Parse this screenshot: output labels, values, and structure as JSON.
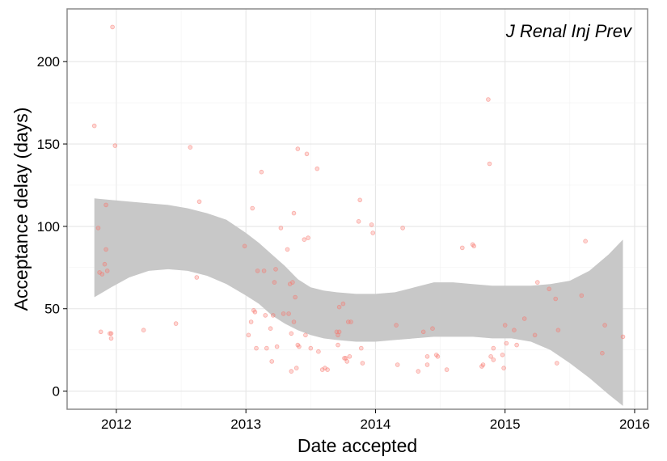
{
  "chart_data": {
    "type": "scatter",
    "title": "",
    "annotation": "J Renal Inj Prev",
    "xlabel": "Date accepted",
    "ylabel": "Acceptance delay (days)",
    "xlim": [
      2011.62,
      2016.1
    ],
    "ylim": [
      -11,
      232
    ],
    "x_ticks": [
      2012,
      2013,
      2014,
      2015,
      2016
    ],
    "x_tick_labels": [
      "2012",
      "2013",
      "2014",
      "2015",
      "2016"
    ],
    "y_ticks": [
      0,
      50,
      100,
      150,
      200
    ],
    "y_tick_labels": [
      "0",
      "50",
      "100",
      "150",
      "200"
    ],
    "grid": true,
    "point_color": "#f8766d",
    "band_color": "#c8c8c8",
    "points": [
      {
        "x": 2011.83,
        "y": 161
      },
      {
        "x": 2011.86,
        "y": 99
      },
      {
        "x": 2011.87,
        "y": 72
      },
      {
        "x": 2011.88,
        "y": 36
      },
      {
        "x": 2011.89,
        "y": 71
      },
      {
        "x": 2011.91,
        "y": 77
      },
      {
        "x": 2011.92,
        "y": 113
      },
      {
        "x": 2011.92,
        "y": 86
      },
      {
        "x": 2011.93,
        "y": 73
      },
      {
        "x": 2011.95,
        "y": 35
      },
      {
        "x": 2011.96,
        "y": 32
      },
      {
        "x": 2011.96,
        "y": 35
      },
      {
        "x": 2011.97,
        "y": 221
      },
      {
        "x": 2011.99,
        "y": 149
      },
      {
        "x": 2012.21,
        "y": 37
      },
      {
        "x": 2012.46,
        "y": 41
      },
      {
        "x": 2012.57,
        "y": 148
      },
      {
        "x": 2012.62,
        "y": 69
      },
      {
        "x": 2012.64,
        "y": 115
      },
      {
        "x": 2012.99,
        "y": 88
      },
      {
        "x": 2013.02,
        "y": 34
      },
      {
        "x": 2013.04,
        "y": 42
      },
      {
        "x": 2013.05,
        "y": 111
      },
      {
        "x": 2013.06,
        "y": 49
      },
      {
        "x": 2013.07,
        "y": 48
      },
      {
        "x": 2013.08,
        "y": 26
      },
      {
        "x": 2013.09,
        "y": 73
      },
      {
        "x": 2013.12,
        "y": 133
      },
      {
        "x": 2013.14,
        "y": 73
      },
      {
        "x": 2013.15,
        "y": 46
      },
      {
        "x": 2013.16,
        "y": 26
      },
      {
        "x": 2013.19,
        "y": 38
      },
      {
        "x": 2013.2,
        "y": 18
      },
      {
        "x": 2013.21,
        "y": 46
      },
      {
        "x": 2013.22,
        "y": 66
      },
      {
        "x": 2013.23,
        "y": 74
      },
      {
        "x": 2013.24,
        "y": 27
      },
      {
        "x": 2013.27,
        "y": 99
      },
      {
        "x": 2013.29,
        "y": 47
      },
      {
        "x": 2013.32,
        "y": 86
      },
      {
        "x": 2013.33,
        "y": 47
      },
      {
        "x": 2013.34,
        "y": 65
      },
      {
        "x": 2013.35,
        "y": 12
      },
      {
        "x": 2013.35,
        "y": 35
      },
      {
        "x": 2013.36,
        "y": 66
      },
      {
        "x": 2013.37,
        "y": 108
      },
      {
        "x": 2013.37,
        "y": 42
      },
      {
        "x": 2013.38,
        "y": 57
      },
      {
        "x": 2013.39,
        "y": 14
      },
      {
        "x": 2013.4,
        "y": 147
      },
      {
        "x": 2013.4,
        "y": 28
      },
      {
        "x": 2013.41,
        "y": 27
      },
      {
        "x": 2013.45,
        "y": 92
      },
      {
        "x": 2013.46,
        "y": 34
      },
      {
        "x": 2013.47,
        "y": 144
      },
      {
        "x": 2013.48,
        "y": 93
      },
      {
        "x": 2013.5,
        "y": 26
      },
      {
        "x": 2013.55,
        "y": 135
      },
      {
        "x": 2013.56,
        "y": 24
      },
      {
        "x": 2013.59,
        "y": 13
      },
      {
        "x": 2013.61,
        "y": 14
      },
      {
        "x": 2013.63,
        "y": 13
      },
      {
        "x": 2013.7,
        "y": 36
      },
      {
        "x": 2013.71,
        "y": 34
      },
      {
        "x": 2013.71,
        "y": 28
      },
      {
        "x": 2013.72,
        "y": 36
      },
      {
        "x": 2013.72,
        "y": 51
      },
      {
        "x": 2013.75,
        "y": 53
      },
      {
        "x": 2013.76,
        "y": 20
      },
      {
        "x": 2013.77,
        "y": 20
      },
      {
        "x": 2013.78,
        "y": 18
      },
      {
        "x": 2013.79,
        "y": 42
      },
      {
        "x": 2013.8,
        "y": 21
      },
      {
        "x": 2013.81,
        "y": 42
      },
      {
        "x": 2013.87,
        "y": 103
      },
      {
        "x": 2013.88,
        "y": 116
      },
      {
        "x": 2013.89,
        "y": 26
      },
      {
        "x": 2013.9,
        "y": 17
      },
      {
        "x": 2013.97,
        "y": 101
      },
      {
        "x": 2013.98,
        "y": 96
      },
      {
        "x": 2014.16,
        "y": 40
      },
      {
        "x": 2014.17,
        "y": 16
      },
      {
        "x": 2014.21,
        "y": 99
      },
      {
        "x": 2014.33,
        "y": 12
      },
      {
        "x": 2014.37,
        "y": 36
      },
      {
        "x": 2014.4,
        "y": 21
      },
      {
        "x": 2014.4,
        "y": 16
      },
      {
        "x": 2014.44,
        "y": 38
      },
      {
        "x": 2014.47,
        "y": 22
      },
      {
        "x": 2014.48,
        "y": 21
      },
      {
        "x": 2014.55,
        "y": 13
      },
      {
        "x": 2014.67,
        "y": 87
      },
      {
        "x": 2014.75,
        "y": 89
      },
      {
        "x": 2014.76,
        "y": 88
      },
      {
        "x": 2014.82,
        "y": 15
      },
      {
        "x": 2014.83,
        "y": 16
      },
      {
        "x": 2014.87,
        "y": 177
      },
      {
        "x": 2014.88,
        "y": 138
      },
      {
        "x": 2014.89,
        "y": 21
      },
      {
        "x": 2014.91,
        "y": 26
      },
      {
        "x": 2014.91,
        "y": 19
      },
      {
        "x": 2014.98,
        "y": 22
      },
      {
        "x": 2014.99,
        "y": 14
      },
      {
        "x": 2015.0,
        "y": 40
      },
      {
        "x": 2015.01,
        "y": 29
      },
      {
        "x": 2015.07,
        "y": 37
      },
      {
        "x": 2015.09,
        "y": 28
      },
      {
        "x": 2015.15,
        "y": 44
      },
      {
        "x": 2015.23,
        "y": 34
      },
      {
        "x": 2015.25,
        "y": 66
      },
      {
        "x": 2015.34,
        "y": 62
      },
      {
        "x": 2015.39,
        "y": 56
      },
      {
        "x": 2015.4,
        "y": 17
      },
      {
        "x": 2015.41,
        "y": 37
      },
      {
        "x": 2015.59,
        "y": 58
      },
      {
        "x": 2015.62,
        "y": 91
      },
      {
        "x": 2015.75,
        "y": 23
      },
      {
        "x": 2015.77,
        "y": 40
      },
      {
        "x": 2015.91,
        "y": 33
      }
    ],
    "smooth_band": [
      {
        "x": 2011.83,
        "lower": 57,
        "upper": 117
      },
      {
        "x": 2011.96,
        "lower": 63,
        "upper": 116
      },
      {
        "x": 2012.1,
        "lower": 69,
        "upper": 115
      },
      {
        "x": 2012.25,
        "lower": 73,
        "upper": 114
      },
      {
        "x": 2012.4,
        "lower": 74,
        "upper": 113
      },
      {
        "x": 2012.55,
        "lower": 73,
        "upper": 111
      },
      {
        "x": 2012.7,
        "lower": 70,
        "upper": 108
      },
      {
        "x": 2012.85,
        "lower": 65,
        "upper": 104
      },
      {
        "x": 2013.0,
        "lower": 58,
        "upper": 96
      },
      {
        "x": 2013.1,
        "lower": 53,
        "upper": 90
      },
      {
        "x": 2013.2,
        "lower": 46,
        "upper": 83
      },
      {
        "x": 2013.3,
        "lower": 41,
        "upper": 76
      },
      {
        "x": 2013.4,
        "lower": 37,
        "upper": 68
      },
      {
        "x": 2013.5,
        "lower": 34,
        "upper": 63
      },
      {
        "x": 2013.6,
        "lower": 32,
        "upper": 61
      },
      {
        "x": 2013.7,
        "lower": 31,
        "upper": 60
      },
      {
        "x": 2013.85,
        "lower": 30,
        "upper": 59
      },
      {
        "x": 2014.0,
        "lower": 30,
        "upper": 59
      },
      {
        "x": 2014.15,
        "lower": 31,
        "upper": 60
      },
      {
        "x": 2014.3,
        "lower": 32,
        "upper": 63
      },
      {
        "x": 2014.45,
        "lower": 33,
        "upper": 66
      },
      {
        "x": 2014.6,
        "lower": 33,
        "upper": 66
      },
      {
        "x": 2014.75,
        "lower": 33,
        "upper": 65
      },
      {
        "x": 2014.9,
        "lower": 32,
        "upper": 64
      },
      {
        "x": 2015.05,
        "lower": 32,
        "upper": 64
      },
      {
        "x": 2015.2,
        "lower": 30,
        "upper": 64
      },
      {
        "x": 2015.35,
        "lower": 25,
        "upper": 65
      },
      {
        "x": 2015.5,
        "lower": 17,
        "upper": 67
      },
      {
        "x": 2015.65,
        "lower": 8,
        "upper": 73
      },
      {
        "x": 2015.8,
        "lower": -2,
        "upper": 83
      },
      {
        "x": 2015.91,
        "lower": -9,
        "upper": 92
      }
    ]
  }
}
